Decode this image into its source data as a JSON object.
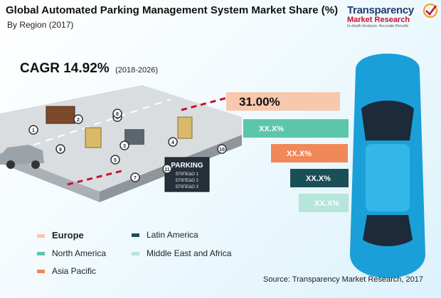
{
  "header": {
    "title": "Global Automated Parking Management System Market Share (%)",
    "subtitle": "By Region (2017)",
    "cagr_label": "CAGR 14.92%",
    "cagr_years": "(2018-2026)"
  },
  "logo": {
    "main": "Transparency",
    "sub": "Market Research",
    "tagline": "In-depth Analysis. Accurate Results"
  },
  "source": "Source: Transparency Market Research, 2017",
  "illustration": {
    "parking_sign": "PARKING",
    "sign_rows": [
      "ΕΠΙΠΕΔΟ 1",
      "ΕΠΙΠΕΔΟ 2",
      "ΕΠΙΠΕΔΟ 3"
    ],
    "markers": [
      "1",
      "2",
      "3",
      "4",
      "5",
      "6",
      "7",
      "8",
      "9",
      "10",
      "11"
    ]
  },
  "chart_data": {
    "type": "bar",
    "orientation": "horizontal",
    "categories": [
      "Europe",
      "North America",
      "Asia Pacific",
      "Latin America",
      "Middle East and Africa"
    ],
    "values": [
      31.0,
      null,
      null,
      null,
      null
    ],
    "value_labels": [
      "31.00%",
      "XX.X%",
      "XX.X%",
      "XX.X%",
      "XX.X%"
    ],
    "colors": [
      "#f7c8ad",
      "#5cc6aa",
      "#f08858",
      "#1a4f58",
      "#b6e5d9"
    ],
    "label_colors": [
      "#111111",
      "#ffffff",
      "#ffffff",
      "#ffffff",
      "#ffffff"
    ],
    "legend": {
      "placement": "bottom-left",
      "columns": [
        [
          "Europe",
          "North America",
          "Asia Pacific"
        ],
        [
          "Latin America",
          "Middle East and Africa"
        ]
      ]
    },
    "grid": false
  }
}
